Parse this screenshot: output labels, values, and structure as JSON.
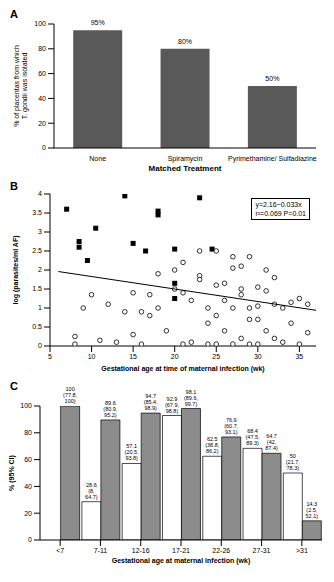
{
  "chart_data": [
    {
      "type": "bar",
      "title": "A",
      "xlabel": "Matched Treatment",
      "ylabel": "% of placentas from which T. gondii was isolated",
      "categories": [
        "None",
        "Spiramycin",
        "Pyrimethamine/ Sulfadiazine"
      ],
      "values": [
        95,
        80,
        50
      ],
      "value_labels": [
        "95%",
        "80%",
        "50%"
      ],
      "data_labels": true,
      "color": "#595959",
      "ylim": [
        0,
        100
      ],
      "yticks": [
        0,
        20,
        40,
        60,
        80,
        100
      ]
    },
    {
      "type": "scatter",
      "title": "B",
      "xlabel": "Gestational age at time of maternal infection (wk)",
      "ylabel": "log (parasites/ml AF)",
      "annotations": [
        "y=2.16−0.033x",
        "r²=0.069 P=0.01"
      ],
      "xlim": [
        5,
        37
      ],
      "xticks": [
        5,
        10,
        15,
        20,
        25,
        30,
        35
      ],
      "ylim": [
        0,
        4
      ],
      "yticks": [
        0,
        0.5,
        1,
        1.5,
        2,
        2.5,
        3,
        3.5,
        4
      ],
      "series": [
        {
          "type": "scatter",
          "marker": "square",
          "color": "#000000",
          "x": [
            7,
            8.5,
            8.5,
            9.5,
            10.5,
            14,
            15,
            16.5,
            18,
            18,
            20,
            20,
            20,
            23,
            24.5
          ],
          "values": [
            3.6,
            2.75,
            2.6,
            2.25,
            3.1,
            3.95,
            2.7,
            2.5,
            3.55,
            3.45,
            2.55,
            1.65,
            1.25,
            3.9,
            2.55
          ]
        },
        {
          "type": "scatter",
          "marker": "open_circle",
          "color": "#000000",
          "x": [
            8,
            8,
            9,
            10,
            11,
            12,
            13,
            14,
            15,
            15,
            16,
            16,
            17,
            17,
            18,
            18,
            19,
            20,
            20,
            21,
            21,
            21,
            22,
            22,
            23,
            23,
            23,
            24,
            24,
            24,
            25,
            25,
            25,
            25,
            26,
            26,
            26,
            27,
            27,
            27,
            27,
            28,
            28,
            28,
            28,
            29,
            29,
            29,
            29,
            30,
            30,
            30,
            30,
            31,
            31,
            31,
            32,
            32,
            32,
            33,
            33,
            34,
            34,
            35,
            35,
            36,
            36
          ],
          "values": [
            0.25,
            0.05,
            1.0,
            1.35,
            0.15,
            1.1,
            0.1,
            0.9,
            1.4,
            0.3,
            0.9,
            0.05,
            1.35,
            0.8,
            1.0,
            1.9,
            0.4,
            2.0,
            1.5,
            2.2,
            1.4,
            0.05,
            1.2,
            0.1,
            2.5,
            1.85,
            1.75,
            0.6,
            1.0,
            0.05,
            2.5,
            1.6,
            0.8,
            0.05,
            1.65,
            1.2,
            0.4,
            2.05,
            2.35,
            1.0,
            0.05,
            2.1,
            1.5,
            1.35,
            0.2,
            2.35,
            1.0,
            0.7,
            0.05,
            1.55,
            1.05,
            0.7,
            0.05,
            2.0,
            1.45,
            0.4,
            1.8,
            1.1,
            0.2,
            1.0,
            0.1,
            1.15,
            0.6,
            1.25,
            0.05,
            1.1,
            0.35
          ]
        },
        {
          "type": "line",
          "line_style": "solid",
          "color": "#000000",
          "x": [
            6,
            37
          ],
          "values": [
            1.96,
            0.94
          ]
        }
      ]
    },
    {
      "type": "bar",
      "title": "C",
      "xlabel": "Gestational age at maternal infection (wk)",
      "ylabel": "% (95% CI)",
      "categories": [
        "<7",
        "7-11",
        "12-16",
        "17-21",
        "22-26",
        "27-31",
        ">31"
      ],
      "ylim": [
        0,
        100
      ],
      "yticks": [
        0,
        20,
        40,
        60,
        80,
        100
      ],
      "data_labels": true,
      "series": [
        {
          "color": "#ffffff",
          "values": [
            null,
            28.6,
            57.1,
            92.9,
            62.5,
            68.4,
            50
          ],
          "value_labels": [
            null,
            "28.6 (8, 64.7)",
            "57.1 (20.5, 93.8)",
            "92.9 (67.9, 98.8)",
            "62.5 (38.8, 86.2)",
            "68.4 (47.5, 89.3)",
            "50 (21.7, 78.3)"
          ]
        },
        {
          "color": "#8c8c8c",
          "values": [
            100,
            89.6,
            94.7,
            98.1,
            76.9,
            64.7,
            14.3
          ],
          "value_labels": [
            "100 (77.8, 100)",
            "89.6 (80.9, 95.2)",
            "94.7 (85.4, 98.9)",
            "98.1 (89.6, 99.7)",
            "76.9 (60.7, 93.1)",
            "64.7 (42, 87.4)",
            "14.3 (2.5, 52.1)"
          ]
        }
      ]
    }
  ]
}
